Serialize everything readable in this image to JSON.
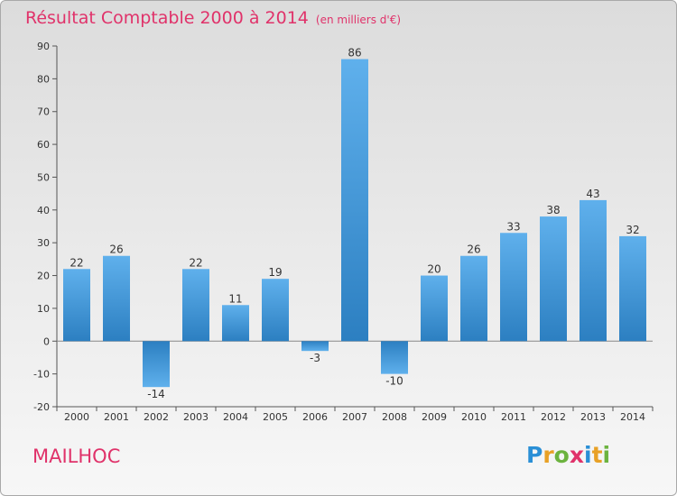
{
  "header": {
    "title": "Résultat Comptable 2000 à 2014",
    "unit": "(en milliers d'€)"
  },
  "commune": "MAILHOC",
  "logo": {
    "text": "Proxiti",
    "letters": [
      {
        "char": "P",
        "color": "#2a8fd6"
      },
      {
        "char": "r",
        "color": "#e8a126"
      },
      {
        "char": "o",
        "color": "#6cb33f"
      },
      {
        "char": "x",
        "color": "#e0326a"
      },
      {
        "char": "i",
        "color": "#2a8fd6"
      },
      {
        "char": "t",
        "color": "#e8a126"
      },
      {
        "char": "i",
        "color": "#6cb33f"
      }
    ]
  },
  "colors": {
    "bar_light": "#5fb0ec",
    "bar_dark": "#2c7fc1",
    "accent": "#e0326a",
    "axis": "#555555"
  },
  "chart_data": {
    "type": "bar",
    "title": "Résultat Comptable 2000 à 2014",
    "subtitle": "(en milliers d'€)",
    "xlabel": "",
    "ylabel": "",
    "categories": [
      "2000",
      "2001",
      "2002",
      "2003",
      "2004",
      "2005",
      "2006",
      "2007",
      "2008",
      "2009",
      "2010",
      "2011",
      "2012",
      "2013",
      "2014"
    ],
    "values": [
      22,
      26,
      -14,
      22,
      11,
      19,
      -3,
      86,
      -10,
      20,
      26,
      33,
      38,
      43,
      32
    ],
    "ylim": [
      -20,
      90
    ],
    "yticks": [
      -20,
      -10,
      0,
      10,
      20,
      30,
      40,
      50,
      60,
      70,
      80,
      90
    ],
    "grid": false,
    "legend": "none"
  }
}
